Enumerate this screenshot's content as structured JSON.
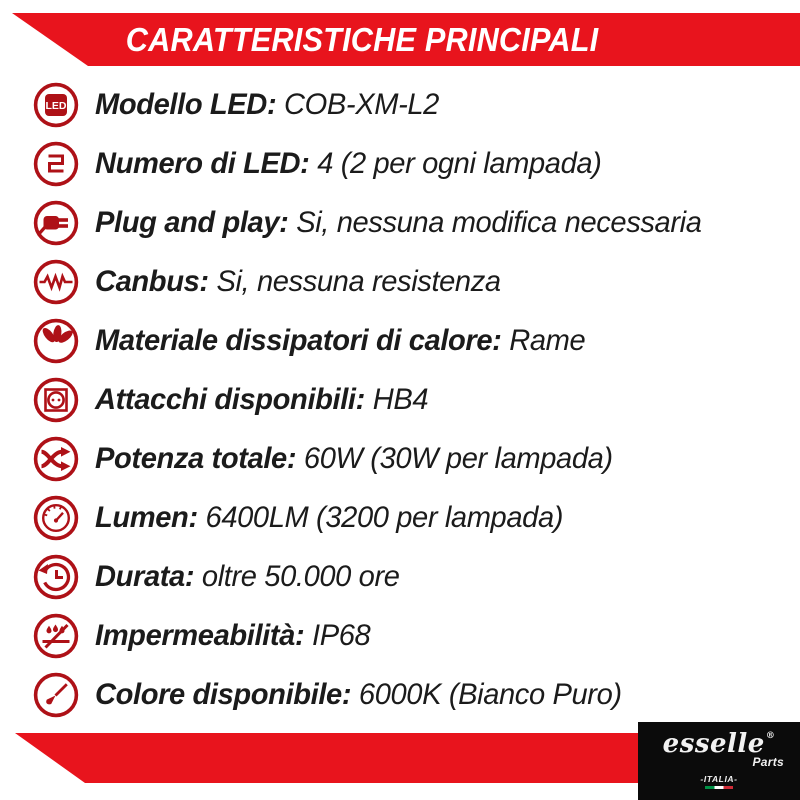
{
  "header": {
    "title": "CARATTERISTICHE PRINCIPALI"
  },
  "specs": [
    {
      "icon": "led-chip-icon",
      "label": "Modello LED:",
      "value": "COB-XM-L2"
    },
    {
      "icon": "led-count-icon",
      "label": "Numero di LED:",
      "value": "4 (2 per ogni lampada)"
    },
    {
      "icon": "plug-icon",
      "label": "Plug and play:",
      "value": "Si, nessuna modifica necessaria"
    },
    {
      "icon": "canbus-resistor-icon",
      "label": "Canbus:",
      "value": "Si, nessuna resistenza"
    },
    {
      "icon": "heatsink-icon",
      "label": "Materiale dissipatori di calore:",
      "value": "Rame"
    },
    {
      "icon": "socket-icon",
      "label": "Attacchi disponibili:",
      "value": "HB4"
    },
    {
      "icon": "crossed-arrows-icon",
      "label": "Potenza totale:",
      "value": "60W (30W per lampada)"
    },
    {
      "icon": "gauge-icon",
      "label": "Lumen:",
      "value": "6400LM (3200 per lampada)"
    },
    {
      "icon": "clock-history-icon",
      "label": "Durata:",
      "value": "oltre 50.000 ore"
    },
    {
      "icon": "waterproof-icon",
      "label": "Impermeabilità:",
      "value": "IP68"
    },
    {
      "icon": "brush-icon",
      "label": "Colore disponibile:",
      "value": "6000K (Bianco Puro)"
    }
  ],
  "logo": {
    "brand": "esselle",
    "registered": "®",
    "sub": "Parts",
    "country": "-ITALIA-"
  },
  "colors": {
    "banner_red": "#e8141d",
    "icon_red": "#ae1117",
    "text": "#1b1b1b",
    "logo_bg": "#0b0b0b",
    "flag_green": "#009246",
    "flag_red": "#ce2b37"
  }
}
